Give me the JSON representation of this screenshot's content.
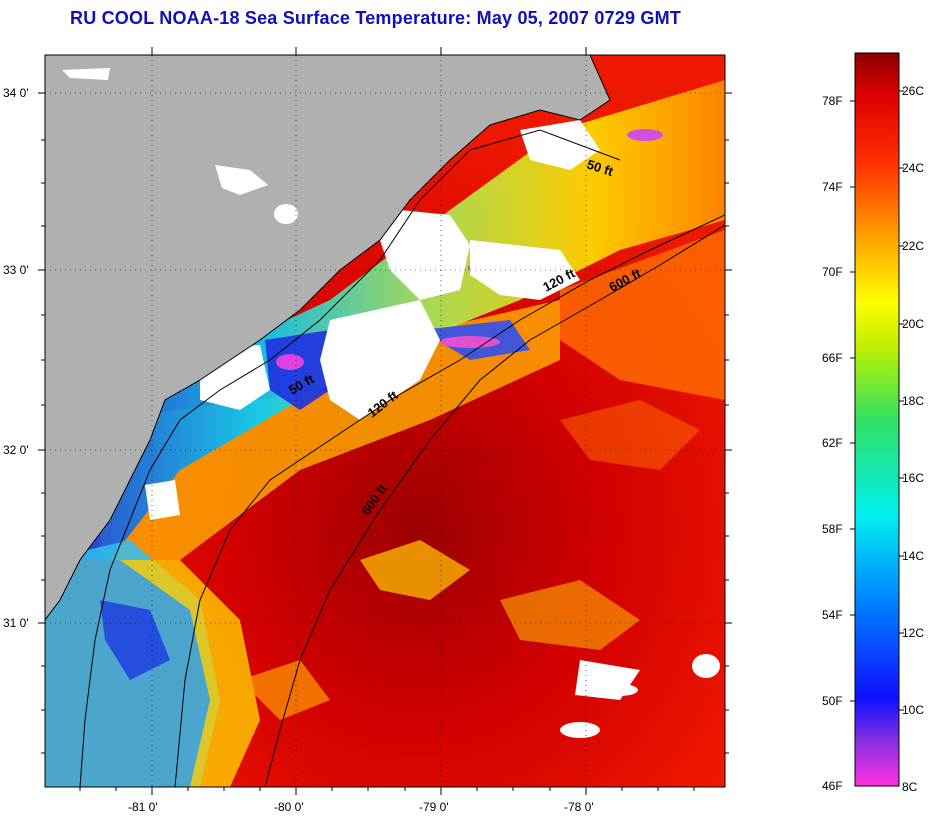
{
  "title": "RU COOL  NOAA-18  Sea Surface Temperature:  May 05, 2007 0729 GMT",
  "map": {
    "lat_labels": [
      "34 0'",
      "33 0'",
      "32 0'",
      "31 0'"
    ],
    "lon_labels": [
      "-81 0'",
      "-80 0'",
      "-79 0'",
      "-78 0'"
    ],
    "isobath_labels": [
      "50 ft",
      "120 ft",
      "600 ft",
      "50 ft",
      "120 ft",
      "600 ft"
    ],
    "colors": {
      "land": "#b0b0b0",
      "cloud": "#ffffff",
      "warm_core": "#b00000",
      "warm": "#e00000",
      "mid": "#ffa000",
      "cool": "#00c8ff",
      "cold": "#1020e0"
    }
  },
  "colorbar": {
    "fahrenheit_labels": [
      "78F",
      "74F",
      "70F",
      "66F",
      "62F",
      "58F",
      "54F",
      "50F",
      "46F"
    ],
    "celsius_labels": [
      "26C",
      "24C",
      "22C",
      "20C",
      "18C",
      "16C",
      "14C",
      "12C",
      "10C",
      "8C"
    ]
  }
}
